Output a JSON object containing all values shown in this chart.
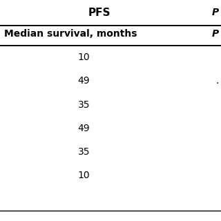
{
  "title": "PFS",
  "col_header": "Median survival, months",
  "col_header2": "P",
  "values": [
    "10",
    "49",
    "35",
    "49",
    "35",
    "10"
  ],
  "p_values": [
    "",
    ".",
    "",
    "",
    "",
    ""
  ],
  "background_color": "#ffffff",
  "text_color": "#000000",
  "header_fontsize": 10,
  "value_fontsize": 10,
  "title_fontsize": 11
}
